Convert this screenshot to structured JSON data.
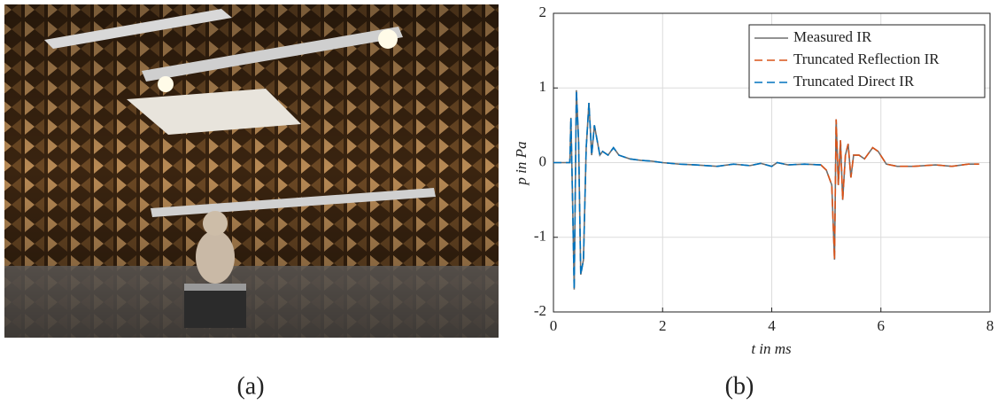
{
  "captions": [
    "(a)",
    "(b)"
  ],
  "chart_data": {
    "type": "line",
    "xlabel": "t in ms",
    "ylabel": "p in Pa",
    "xlim": [
      0,
      8
    ],
    "xticks": [
      0,
      2,
      4,
      6,
      8
    ],
    "ylim": [
      -2,
      2
    ],
    "yticks": [
      -2,
      -1,
      0,
      1,
      2
    ],
    "grid": true,
    "legend": "upper right",
    "x": [
      0,
      0.3,
      0.32,
      0.35,
      0.38,
      0.42,
      0.46,
      0.5,
      0.55,
      0.6,
      0.65,
      0.7,
      0.75,
      0.8,
      0.85,
      0.9,
      1.0,
      1.1,
      1.2,
      1.4,
      1.6,
      1.8,
      2.0,
      2.3,
      2.6,
      3.0,
      3.3,
      3.6,
      3.8,
      4.0,
      4.1,
      4.3,
      4.6,
      4.9,
      5.0,
      5.1,
      5.15,
      5.18,
      5.22,
      5.26,
      5.3,
      5.35,
      5.4,
      5.45,
      5.5,
      5.6,
      5.7,
      5.85,
      5.95,
      6.1,
      6.3,
      6.6,
      7.0,
      7.3,
      7.6,
      7.8
    ],
    "series": [
      {
        "name": "Measured IR",
        "color": "#6e6e6e",
        "dash": false,
        "values": [
          0,
          0,
          0.6,
          -0.5,
          -1.7,
          0.97,
          0.3,
          -1.5,
          -1.3,
          0.2,
          0.8,
          0.1,
          0.5,
          0.3,
          0.1,
          0.15,
          0.1,
          0.2,
          0.1,
          0.05,
          0.03,
          0.02,
          0.0,
          -0.02,
          -0.03,
          -0.05,
          -0.02,
          -0.04,
          -0.01,
          -0.05,
          0.0,
          -0.03,
          -0.02,
          -0.03,
          -0.1,
          -0.3,
          -1.3,
          0.58,
          -0.3,
          0.3,
          -0.5,
          0.1,
          0.25,
          -0.2,
          0.1,
          0.1,
          0.05,
          0.2,
          0.15,
          -0.02,
          -0.05,
          -0.05,
          -0.03,
          -0.05,
          -0.02,
          -0.02
        ]
      },
      {
        "name": "Truncated Reflection IR",
        "color": "#d95319",
        "dash": true,
        "values": [
          null,
          null,
          null,
          null,
          null,
          null,
          null,
          null,
          null,
          null,
          null,
          null,
          null,
          null,
          null,
          null,
          null,
          null,
          null,
          null,
          null,
          null,
          null,
          null,
          null,
          null,
          null,
          null,
          null,
          null,
          null,
          null,
          null,
          -0.03,
          -0.1,
          -0.3,
          -1.3,
          0.58,
          -0.3,
          0.3,
          -0.5,
          0.1,
          0.25,
          -0.2,
          0.1,
          0.1,
          0.05,
          0.2,
          0.15,
          -0.02,
          -0.05,
          -0.05,
          -0.03,
          -0.05,
          -0.02,
          -0.02
        ]
      },
      {
        "name": "Truncated Direct IR",
        "color": "#0072bd",
        "dash": true,
        "values": [
          0,
          0,
          0.6,
          -0.5,
          -1.7,
          0.97,
          0.3,
          -1.5,
          -1.3,
          0.2,
          0.8,
          0.1,
          0.5,
          0.3,
          0.1,
          0.15,
          0.1,
          0.2,
          0.1,
          0.05,
          0.03,
          0.02,
          0.0,
          -0.02,
          -0.03,
          -0.05,
          -0.02,
          -0.04,
          -0.01,
          -0.05,
          0.0,
          -0.03,
          -0.02,
          -0.03,
          null,
          null,
          null,
          null,
          null,
          null,
          null,
          null,
          null,
          null,
          null,
          null,
          null,
          null,
          null,
          null,
          null,
          null,
          null,
          null,
          null,
          null
        ]
      }
    ]
  }
}
